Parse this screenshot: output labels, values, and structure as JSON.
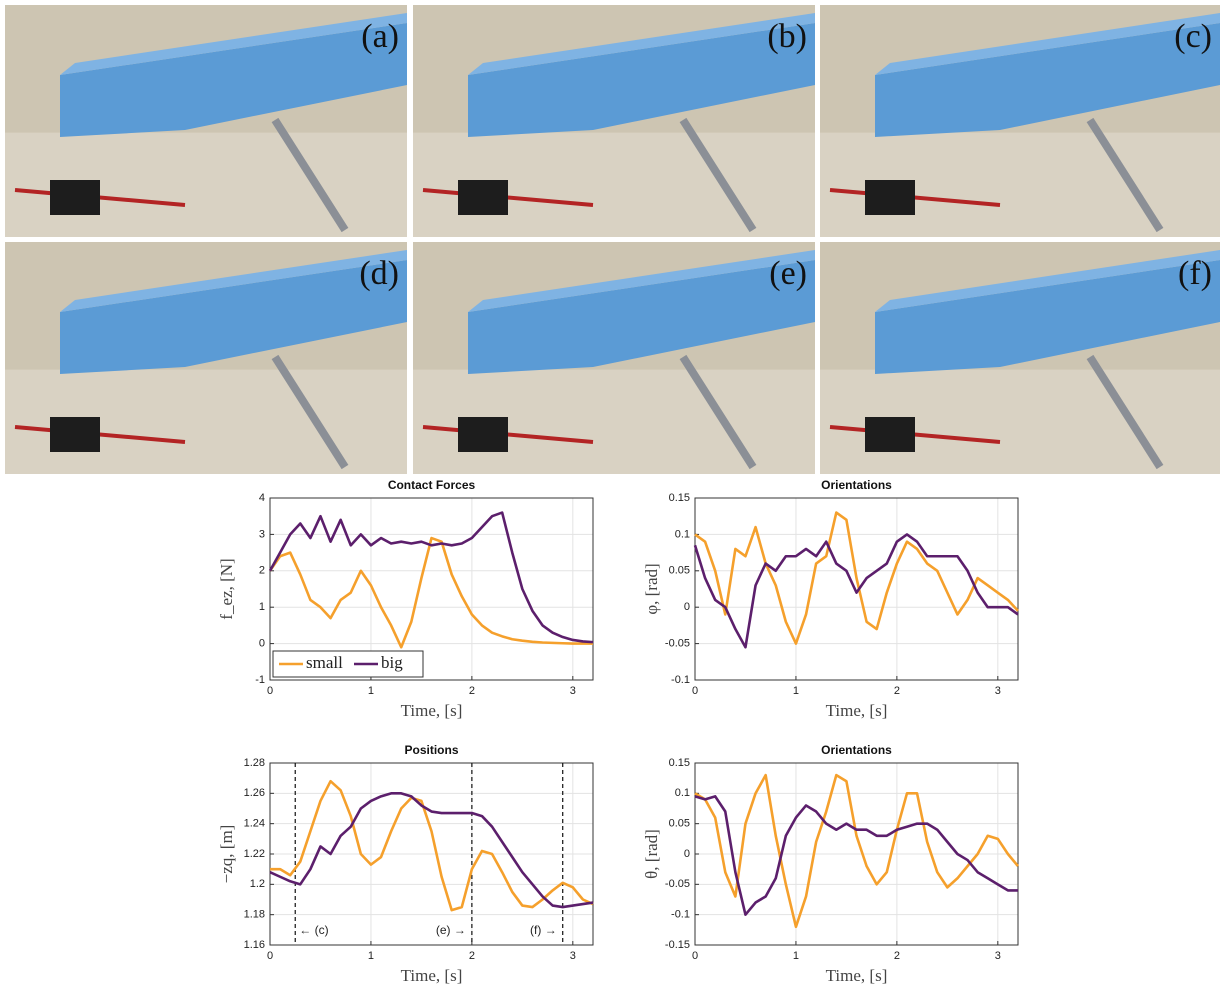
{
  "panels": [
    {
      "label": "(a)"
    },
    {
      "label": "(b)"
    },
    {
      "label": "(c)"
    },
    {
      "label": "(d)"
    },
    {
      "label": "(e)"
    },
    {
      "label": "(f)"
    }
  ],
  "chart_data": [
    {
      "type": "line",
      "title": "Contact Forces",
      "x_label": "Time, [s]",
      "y_label": "f_ez, [N]",
      "x": [
        0,
        0.1,
        0.2,
        0.3,
        0.4,
        0.5,
        0.6,
        0.7,
        0.8,
        0.9,
        1.0,
        1.1,
        1.2,
        1.3,
        1.4,
        1.5,
        1.6,
        1.7,
        1.8,
        1.9,
        2.0,
        2.1,
        2.2,
        2.3,
        2.4,
        2.5,
        2.6,
        2.7,
        2.8,
        2.9,
        3.0,
        3.1,
        3.2
      ],
      "xlim": [
        0,
        3.2
      ],
      "xticks": [
        0,
        1,
        2,
        3
      ],
      "ylim": [
        -1,
        4
      ],
      "yticks": [
        -1,
        0,
        1,
        2,
        3,
        4
      ],
      "grid": true,
      "legend": "lower left",
      "series": [
        {
          "name": "small",
          "color": "#f5a02c",
          "values": [
            2.0,
            2.4,
            2.5,
            1.9,
            1.2,
            1.0,
            0.7,
            1.2,
            1.4,
            2.0,
            1.6,
            1.0,
            0.5,
            -0.1,
            0.6,
            1.8,
            2.9,
            2.8,
            1.9,
            1.3,
            0.8,
            0.5,
            0.3,
            0.2,
            0.12,
            0.08,
            0.05,
            0.03,
            0.02,
            0.01,
            0.0,
            0.0,
            0.0
          ]
        },
        {
          "name": "big",
          "color": "#5c1f6c",
          "values": [
            2.0,
            2.5,
            3.0,
            3.3,
            2.9,
            3.5,
            2.8,
            3.4,
            2.7,
            3.0,
            2.7,
            2.9,
            2.75,
            2.8,
            2.75,
            2.8,
            2.7,
            2.75,
            2.7,
            2.75,
            2.9,
            3.2,
            3.5,
            3.6,
            2.5,
            1.5,
            0.9,
            0.5,
            0.3,
            0.18,
            0.1,
            0.06,
            0.04
          ]
        }
      ]
    },
    {
      "type": "line",
      "title": "Orientations",
      "x_label": "Time, [s]",
      "y_label": "φ, [rad]",
      "x": [
        0,
        0.1,
        0.2,
        0.3,
        0.4,
        0.5,
        0.6,
        0.7,
        0.8,
        0.9,
        1.0,
        1.1,
        1.2,
        1.3,
        1.4,
        1.5,
        1.6,
        1.7,
        1.8,
        1.9,
        2.0,
        2.1,
        2.2,
        2.3,
        2.4,
        2.5,
        2.6,
        2.7,
        2.8,
        2.9,
        3.0,
        3.1,
        3.2
      ],
      "xlim": [
        0,
        3.2
      ],
      "xticks": [
        0,
        1,
        2,
        3
      ],
      "ylim": [
        -0.1,
        0.15
      ],
      "yticks": [
        -0.1,
        -0.05,
        0,
        0.05,
        0.1,
        0.15
      ],
      "grid": true,
      "series": [
        {
          "color": "#f5a02c",
          "values": [
            0.1,
            0.09,
            0.05,
            -0.01,
            0.08,
            0.07,
            0.11,
            0.06,
            0.03,
            -0.02,
            -0.05,
            -0.01,
            0.06,
            0.07,
            0.13,
            0.12,
            0.04,
            -0.02,
            -0.03,
            0.02,
            0.06,
            0.09,
            0.08,
            0.06,
            0.05,
            0.02,
            -0.01,
            0.01,
            0.04,
            0.03,
            0.02,
            0.01,
            -0.005
          ]
        },
        {
          "color": "#5c1f6c",
          "values": [
            0.085,
            0.04,
            0.01,
            0.0,
            -0.03,
            -0.055,
            0.03,
            0.06,
            0.05,
            0.07,
            0.07,
            0.08,
            0.07,
            0.09,
            0.06,
            0.05,
            0.02,
            0.04,
            0.05,
            0.06,
            0.09,
            0.1,
            0.09,
            0.07,
            0.07,
            0.07,
            0.07,
            0.05,
            0.02,
            0.0,
            0.0,
            0.0,
            -0.01
          ]
        }
      ]
    },
    {
      "type": "line",
      "title": "Positions",
      "x_label": "Time, [s]",
      "y_label": "−zq, [m]",
      "x": [
        0,
        0.1,
        0.2,
        0.3,
        0.4,
        0.5,
        0.6,
        0.7,
        0.8,
        0.9,
        1.0,
        1.1,
        1.2,
        1.3,
        1.4,
        1.5,
        1.6,
        1.7,
        1.8,
        1.9,
        2.0,
        2.1,
        2.2,
        2.3,
        2.4,
        2.5,
        2.6,
        2.7,
        2.8,
        2.9,
        3.0,
        3.1,
        3.2
      ],
      "xlim": [
        0,
        3.2
      ],
      "xticks": [
        0,
        1,
        2,
        3
      ],
      "ylim": [
        1.16,
        1.28
      ],
      "yticks": [
        1.16,
        1.18,
        1.2,
        1.22,
        1.24,
        1.26,
        1.28
      ],
      "grid": true,
      "annotations": [
        {
          "x": 0.25,
          "text": "← (c)"
        },
        {
          "x": 2.0,
          "text": "(e) →"
        },
        {
          "x": 2.9,
          "text": "(f) →"
        }
      ],
      "series": [
        {
          "color": "#f5a02c",
          "values": [
            1.21,
            1.21,
            1.206,
            1.215,
            1.235,
            1.255,
            1.268,
            1.262,
            1.245,
            1.22,
            1.213,
            1.218,
            1.235,
            1.25,
            1.257,
            1.255,
            1.235,
            1.205,
            1.183,
            1.185,
            1.21,
            1.222,
            1.22,
            1.208,
            1.195,
            1.186,
            1.185,
            1.19,
            1.196,
            1.201,
            1.198,
            1.19,
            1.187
          ]
        },
        {
          "color": "#5c1f6c",
          "values": [
            1.208,
            1.205,
            1.202,
            1.2,
            1.21,
            1.225,
            1.22,
            1.232,
            1.238,
            1.25,
            1.255,
            1.258,
            1.26,
            1.26,
            1.258,
            1.252,
            1.248,
            1.247,
            1.247,
            1.247,
            1.247,
            1.245,
            1.238,
            1.228,
            1.218,
            1.208,
            1.2,
            1.192,
            1.186,
            1.185,
            1.186,
            1.187,
            1.188
          ]
        }
      ]
    },
    {
      "type": "line",
      "title": "Orientations",
      "x_label": "Time, [s]",
      "y_label": "θ, [rad]",
      "x": [
        0,
        0.1,
        0.2,
        0.3,
        0.4,
        0.5,
        0.6,
        0.7,
        0.8,
        0.9,
        1.0,
        1.1,
        1.2,
        1.3,
        1.4,
        1.5,
        1.6,
        1.7,
        1.8,
        1.9,
        2.0,
        2.1,
        2.2,
        2.3,
        2.4,
        2.5,
        2.6,
        2.7,
        2.8,
        2.9,
        3.0,
        3.1,
        3.2
      ],
      "xlim": [
        0,
        3.2
      ],
      "xticks": [
        0,
        1,
        2,
        3
      ],
      "ylim": [
        -0.15,
        0.15
      ],
      "yticks": [
        -0.15,
        -0.1,
        -0.05,
        0,
        0.05,
        0.1,
        0.15
      ],
      "grid": true,
      "series": [
        {
          "color": "#f5a02c",
          "values": [
            0.1,
            0.09,
            0.06,
            -0.03,
            -0.07,
            0.05,
            0.1,
            0.13,
            0.03,
            -0.05,
            -0.12,
            -0.07,
            0.02,
            0.07,
            0.13,
            0.12,
            0.03,
            -0.02,
            -0.05,
            -0.03,
            0.04,
            0.1,
            0.1,
            0.02,
            -0.03,
            -0.055,
            -0.04,
            -0.02,
            0.0,
            0.03,
            0.025,
            0.0,
            -0.02
          ]
        },
        {
          "color": "#5c1f6c",
          "values": [
            0.095,
            0.09,
            0.095,
            0.07,
            -0.03,
            -0.1,
            -0.08,
            -0.07,
            -0.04,
            0.03,
            0.06,
            0.08,
            0.07,
            0.05,
            0.04,
            0.05,
            0.04,
            0.04,
            0.03,
            0.03,
            0.04,
            0.045,
            0.05,
            0.05,
            0.04,
            0.02,
            0.0,
            -0.01,
            -0.03,
            -0.04,
            -0.05,
            -0.06,
            -0.06
          ]
        }
      ]
    }
  ]
}
